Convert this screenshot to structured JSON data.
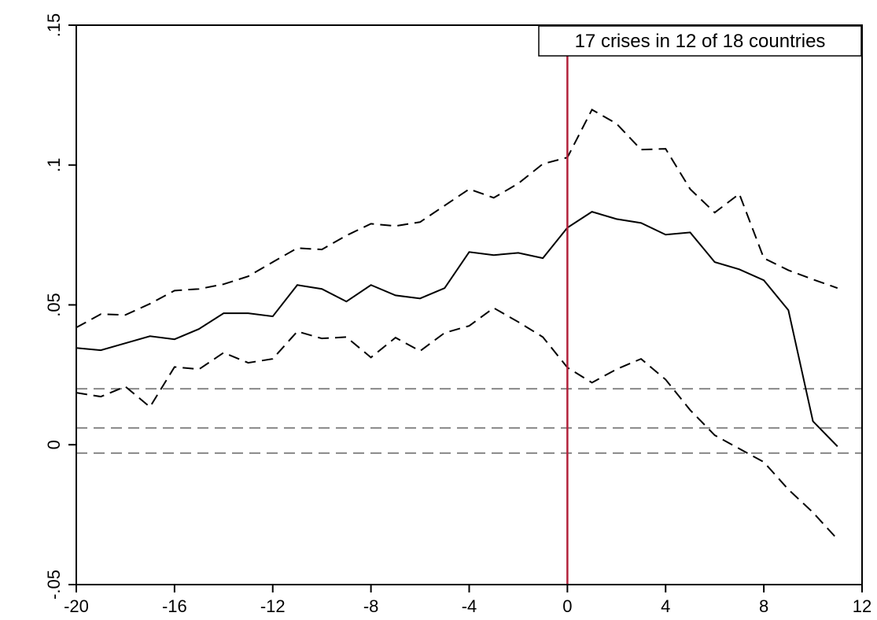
{
  "chart_data": {
    "type": "line",
    "annotation": "17 crises in 12 of 18 countries",
    "x": [
      -20,
      -19,
      -18,
      -17,
      -16,
      -15,
      -14,
      -13,
      -12,
      -11,
      -10,
      -9,
      -8,
      -7,
      -6,
      -5,
      -4,
      -3,
      -2,
      -1,
      0,
      1,
      2,
      3,
      4,
      5,
      6,
      7,
      8,
      9,
      10,
      11
    ],
    "series": [
      {
        "color": "#000000",
        "dash": false,
        "values": [
          0.0346,
          0.0338,
          0.0363,
          0.0388,
          0.0377,
          0.0414,
          0.047,
          0.047,
          0.0459,
          0.0571,
          0.0557,
          0.0512,
          0.0571,
          0.0534,
          0.0523,
          0.056,
          0.0689,
          0.0678,
          0.0686,
          0.0667,
          0.0776,
          0.0833,
          0.0807,
          0.0793,
          0.0751,
          0.0759,
          0.0653,
          0.0627,
          0.0588,
          0.0481,
          0.0084,
          -0.0006
        ]
      },
      {
        "color": "#000000",
        "dash": true,
        "values": [
          0.0419,
          0.0467,
          0.0464,
          0.0504,
          0.0551,
          0.0557,
          0.0574,
          0.0602,
          0.0653,
          0.0703,
          0.0698,
          0.0748,
          0.079,
          0.0782,
          0.0796,
          0.0855,
          0.0914,
          0.0883,
          0.0934,
          0.1004,
          0.1027,
          0.1198,
          0.1148,
          0.1055,
          0.1058,
          0.0914,
          0.083,
          0.0897,
          0.0667,
          0.0624,
          0.0591,
          0.056
        ]
      },
      {
        "color": "#000000",
        "dash": true,
        "values": [
          0.0186,
          0.0172,
          0.0208,
          0.0135,
          0.0278,
          0.027,
          0.0329,
          0.0293,
          0.0307,
          0.0405,
          0.038,
          0.0385,
          0.0312,
          0.0383,
          0.0335,
          0.04,
          0.0425,
          0.0489,
          0.0439,
          0.0385,
          0.0276,
          0.0222,
          0.027,
          0.0307,
          0.0233,
          0.0124,
          0.0034,
          -0.0014,
          -0.0062,
          -0.016,
          -0.0242,
          -0.0338
        ]
      }
    ],
    "hlines": {
      "values": [
        0.02,
        0.006,
        -0.003
      ],
      "color": "#888888"
    },
    "vlines": {
      "values": [
        0
      ],
      "color": "#b2203a"
    },
    "xlim": [
      -20,
      12
    ],
    "xticks": [
      -20,
      -16,
      -12,
      -8,
      -4,
      0,
      4,
      8,
      12
    ],
    "ylim": [
      -0.05,
      0.15
    ],
    "yticks": [
      {
        "value": -0.05,
        "label": "-.05"
      },
      0,
      {
        "value": 0.05,
        "label": ".05"
      },
      {
        "value": 0.1,
        "label": ".1"
      },
      {
        "value": 0.15,
        "label": ".15"
      }
    ]
  }
}
